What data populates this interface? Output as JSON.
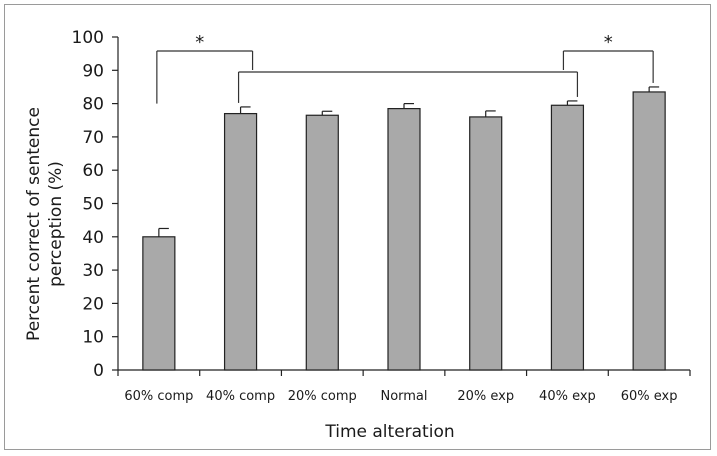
{
  "chart_data": {
    "type": "bar",
    "categories": [
      "60% comp",
      "40% comp",
      "20% comp",
      "Normal",
      "20% exp",
      "40% exp",
      "60% exp"
    ],
    "values": [
      40,
      77,
      76.5,
      78.5,
      76,
      79.5,
      83.5
    ],
    "errors": [
      2.5,
      2,
      1.2,
      1.5,
      1.8,
      1.3,
      1.5
    ],
    "xlabel": "Time alteration",
    "ylabel_lines": [
      "Percent correct of sentence",
      "perception (%)"
    ],
    "ylim": [
      0,
      100
    ],
    "yticks": [
      0,
      10,
      20,
      30,
      40,
      50,
      60,
      70,
      80,
      90,
      100
    ],
    "bar_color": "#a9a9a9",
    "grid": false,
    "significance": [
      {
        "from": 0,
        "to": 1,
        "label": "*"
      },
      {
        "from": 5,
        "to": 6,
        "label": "*"
      },
      {
        "from": 1,
        "to": 5,
        "label": ""
      }
    ]
  }
}
